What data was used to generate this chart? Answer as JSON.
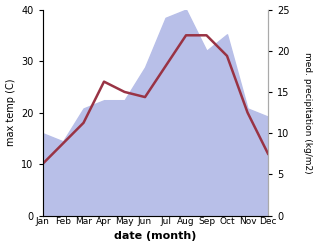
{
  "months": [
    "Jan",
    "Feb",
    "Mar",
    "Apr",
    "May",
    "Jun",
    "Jul",
    "Aug",
    "Sep",
    "Oct",
    "Nov",
    "Dec"
  ],
  "temp_max": [
    10.0,
    14.0,
    18.0,
    26.0,
    24.0,
    23.0,
    29.0,
    35.0,
    35.0,
    31.0,
    20.0,
    12.0
  ],
  "precip": [
    10.0,
    9.0,
    13.0,
    14.0,
    14.0,
    18.0,
    24.0,
    25.0,
    20.0,
    22.0,
    13.0,
    12.0
  ],
  "temp_color": "#993344",
  "precip_fill_color": "#b8bfe8",
  "left_ylabel": "max temp (C)",
  "right_ylabel": "med. precipitation (kg/m2)",
  "xlabel": "date (month)",
  "left_ylim": [
    0,
    40
  ],
  "right_ylim": [
    0,
    25
  ],
  "bg_color": "#ffffff",
  "line_width": 1.8
}
